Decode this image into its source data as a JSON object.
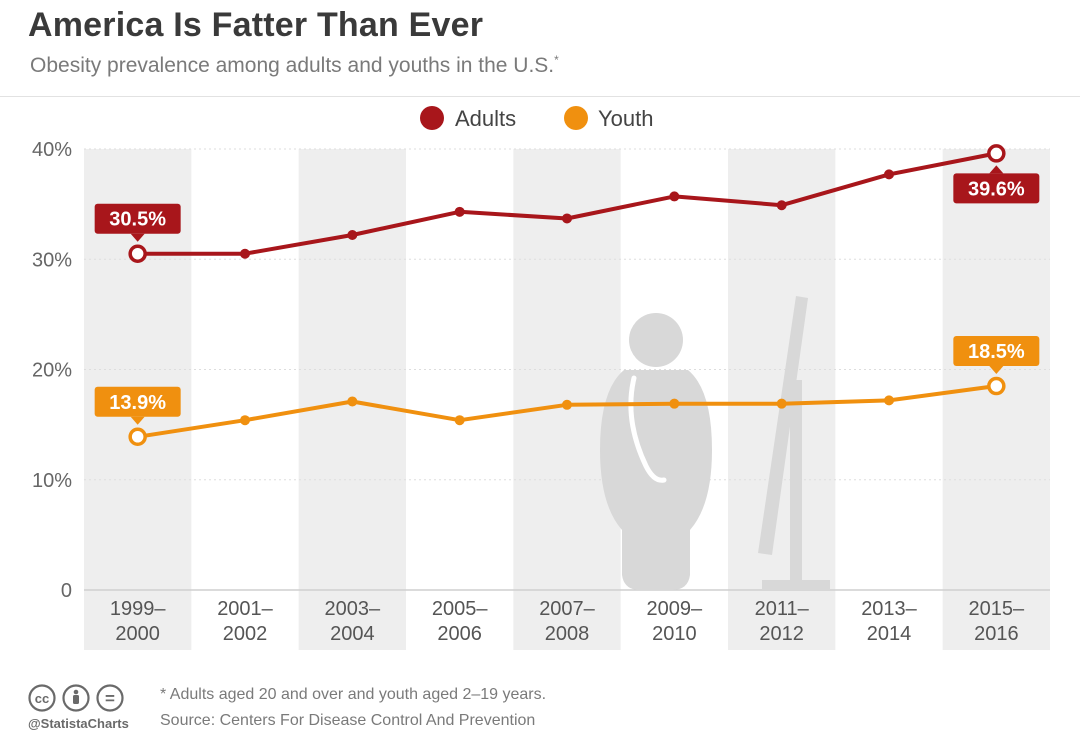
{
  "header": {
    "title": "America Is Fatter Than Ever",
    "subtitle": "Obesity prevalence among adults and youths in the U.S.",
    "subtitle_mark": "*"
  },
  "footer": {
    "note": "* Adults aged 20 and over and youth aged 2–19 years.",
    "source": "Source: Centers For Disease Control And Prevention",
    "brand": "@StatistaCharts",
    "license_icons": [
      "creative-commons-icon",
      "attribution-icon",
      "no-derivatives-icon"
    ],
    "license_labels": [
      "cc",
      "="
    ]
  },
  "colors": {
    "adults": "#a8161b",
    "youth": "#f0900f",
    "band": "#eeeeee",
    "axis_text": "#666666",
    "silhouette": "#d6d6d6"
  },
  "chart_data": {
    "type": "line",
    "title": "America Is Fatter Than Ever",
    "categories": [
      [
        "1999–",
        "2000"
      ],
      [
        "2001–",
        "2002"
      ],
      [
        "2003–",
        "2004"
      ],
      [
        "2005–",
        "2006"
      ],
      [
        "2007–",
        "2008"
      ],
      [
        "2009–",
        "2010"
      ],
      [
        "2011–",
        "2012"
      ],
      [
        "2013–",
        "2014"
      ],
      [
        "2015–",
        "2016"
      ]
    ],
    "yticks": [
      {
        "value": 0,
        "label": "0"
      },
      {
        "value": 10,
        "label": "10%"
      },
      {
        "value": 20,
        "label": "20%"
      },
      {
        "value": 30,
        "label": "30%"
      },
      {
        "value": 40,
        "label": "40%"
      }
    ],
    "ylim": [
      0,
      40
    ],
    "legend_position": "top-center",
    "series": [
      {
        "name": "Adults",
        "key": "adults",
        "values": [
          30.5,
          30.5,
          32.2,
          34.3,
          33.7,
          35.7,
          34.9,
          37.7,
          39.6
        ],
        "labels": [
          {
            "index": 0,
            "text": "30.5%",
            "placement": "above"
          },
          {
            "index": 8,
            "text": "39.6%",
            "placement": "below"
          }
        ]
      },
      {
        "name": "Youth",
        "key": "youth",
        "values": [
          13.9,
          15.4,
          17.1,
          15.4,
          16.8,
          16.9,
          16.9,
          17.2,
          18.5
        ],
        "labels": [
          {
            "index": 0,
            "text": "13.9%",
            "placement": "above"
          },
          {
            "index": 8,
            "text": "18.5%",
            "placement": "above"
          }
        ]
      }
    ]
  }
}
